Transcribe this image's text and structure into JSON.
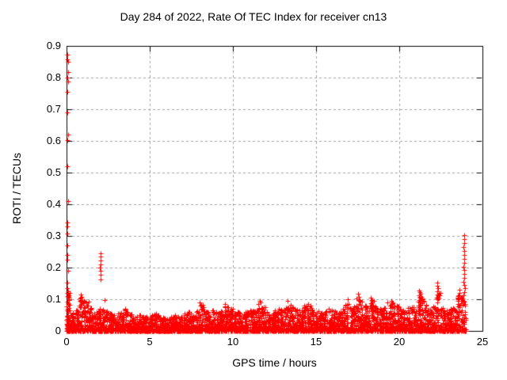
{
  "title": "Day 284 of 2022, Rate Of TEC Index for receiver cn13",
  "chart_data": {
    "type": "scatter",
    "title": "Day 284 of 2022, Rate Of TEC Index for receiver cn13",
    "xlabel": "GPS time / hours",
    "ylabel": "ROTI / TECUs",
    "xlim": [
      0,
      25
    ],
    "ylim": [
      0,
      0.9
    ],
    "xticks": [
      0,
      5,
      10,
      15,
      20,
      25
    ],
    "yticks": [
      0,
      0.1,
      0.2,
      0.3,
      0.4,
      0.5,
      0.6,
      0.7,
      0.8,
      0.9
    ],
    "xtick_labels": [
      "0",
      "5",
      "10",
      "15",
      "20",
      "25"
    ],
    "ytick_labels": [
      "0",
      "0.1",
      "0.2",
      "0.3",
      "0.4",
      "0.5",
      "0.6",
      "0.7",
      "0.8",
      "0.9"
    ],
    "grid": true,
    "grid_color": "#a0a0a0",
    "axis_color": "#000000",
    "background_color": "#ffffff",
    "marker": "plus",
    "marker_color": "#ff0000",
    "marker_size_px": 7,
    "legend": null,
    "data_x_extent": [
      0,
      24
    ],
    "band_envelope": {
      "bin_hours": 0.25,
      "points_per_bin": 40,
      "max_values": [
        0.12,
        0.06,
        0.065,
        0.105,
        0.095,
        0.085,
        0.055,
        0.065,
        0.075,
        0.065,
        0.06,
        0.05,
        0.055,
        0.06,
        0.07,
        0.055,
        0.05,
        0.055,
        0.05,
        0.045,
        0.05,
        0.06,
        0.05,
        0.045,
        0.04,
        0.045,
        0.05,
        0.045,
        0.055,
        0.06,
        0.05,
        0.065,
        0.085,
        0.07,
        0.06,
        0.065,
        0.06,
        0.065,
        0.08,
        0.07,
        0.06,
        0.065,
        0.055,
        0.06,
        0.065,
        0.07,
        0.09,
        0.075,
        0.065,
        0.06,
        0.065,
        0.07,
        0.075,
        0.085,
        0.08,
        0.07,
        0.065,
        0.08,
        0.08,
        0.07,
        0.065,
        0.06,
        0.065,
        0.07,
        0.065,
        0.06,
        0.07,
        0.085,
        0.075,
        0.08,
        0.1,
        0.085,
        0.08,
        0.095,
        0.08,
        0.07,
        0.075,
        0.085,
        0.09,
        0.08,
        0.07,
        0.065,
        0.075,
        0.08,
        0.085,
        0.11,
        0.085,
        0.07,
        0.08,
        0.12,
        0.075,
        0.065,
        0.07,
        0.075,
        0.11,
        0.095
      ]
    },
    "dense_column": {
      "x_range": [
        0,
        0.15
      ],
      "y_max": 0.12,
      "count": 34
    },
    "outliers": [
      [
        0.05,
        0.873
      ],
      [
        0.06,
        0.858
      ],
      [
        0.09,
        0.85
      ],
      [
        0.11,
        0.818
      ],
      [
        0.05,
        0.8
      ],
      [
        0.08,
        0.787
      ],
      [
        0.05,
        0.755
      ],
      [
        0.05,
        0.69
      ],
      [
        0.08,
        0.62
      ],
      [
        0.05,
        0.603
      ],
      [
        0.05,
        0.52
      ],
      [
        0.09,
        0.41
      ],
      [
        0.05,
        0.342
      ],
      [
        0.07,
        0.33
      ],
      [
        0.05,
        0.307
      ],
      [
        0.06,
        0.27
      ],
      [
        0.06,
        0.24
      ],
      [
        0.05,
        0.225
      ],
      [
        0.08,
        0.19
      ],
      [
        0.05,
        0.152
      ],
      [
        0.07,
        0.135
      ],
      [
        0.1,
        0.125
      ],
      [
        0.05,
        0.12
      ],
      [
        2.05,
        0.245
      ],
      [
        2.05,
        0.235
      ],
      [
        2.06,
        0.222
      ],
      [
        2.05,
        0.21
      ],
      [
        2.02,
        0.2
      ],
      [
        2.05,
        0.19
      ],
      [
        2.05,
        0.178
      ],
      [
        2.06,
        0.163
      ],
      [
        2.3,
        0.098
      ],
      [
        0.85,
        0.115
      ],
      [
        0.9,
        0.108
      ],
      [
        0.8,
        0.103
      ],
      [
        1.35,
        0.092
      ],
      [
        8.0,
        0.09
      ],
      [
        9.5,
        0.086
      ],
      [
        11.6,
        0.096
      ],
      [
        11.65,
        0.09
      ],
      [
        13.3,
        0.094
      ],
      [
        14.5,
        0.086
      ],
      [
        16.9,
        0.1
      ],
      [
        17.5,
        0.117
      ],
      [
        17.55,
        0.108
      ],
      [
        17.45,
        0.102
      ],
      [
        18.3,
        0.106
      ],
      [
        18.35,
        0.097
      ],
      [
        19.3,
        0.09
      ],
      [
        19.5,
        0.096
      ],
      [
        19.55,
        0.09
      ],
      [
        21.2,
        0.127
      ],
      [
        21.25,
        0.122
      ],
      [
        21.3,
        0.117
      ],
      [
        21.18,
        0.112
      ],
      [
        21.32,
        0.108
      ],
      [
        21.24,
        0.104
      ],
      [
        21.36,
        0.101
      ],
      [
        21.2,
        0.098
      ],
      [
        21.3,
        0.094
      ],
      [
        21.26,
        0.09
      ],
      [
        21.15,
        0.092
      ],
      [
        21.4,
        0.087
      ],
      [
        21.3,
        0.083
      ],
      [
        21.22,
        0.08
      ],
      [
        22.3,
        0.152
      ],
      [
        22.3,
        0.143
      ],
      [
        22.32,
        0.134
      ],
      [
        22.28,
        0.125
      ],
      [
        22.3,
        0.116
      ],
      [
        22.33,
        0.107
      ],
      [
        22.27,
        0.099
      ],
      [
        22.3,
        0.09
      ],
      [
        23.9,
        0.302
      ],
      [
        23.9,
        0.29
      ],
      [
        23.9,
        0.277
      ],
      [
        23.88,
        0.265
      ],
      [
        23.9,
        0.252
      ],
      [
        23.9,
        0.24
      ],
      [
        23.92,
        0.228
      ],
      [
        23.9,
        0.215
      ],
      [
        23.88,
        0.203
      ],
      [
        23.9,
        0.192
      ],
      [
        23.9,
        0.18
      ],
      [
        23.9,
        0.168
      ],
      [
        23.86,
        0.156
      ],
      [
        23.9,
        0.145
      ],
      [
        23.94,
        0.134
      ],
      [
        23.9,
        0.123
      ],
      [
        23.85,
        0.112
      ],
      [
        23.82,
        0.102
      ],
      [
        23.6,
        0.13
      ],
      [
        23.62,
        0.12
      ],
      [
        23.58,
        0.112
      ]
    ]
  }
}
